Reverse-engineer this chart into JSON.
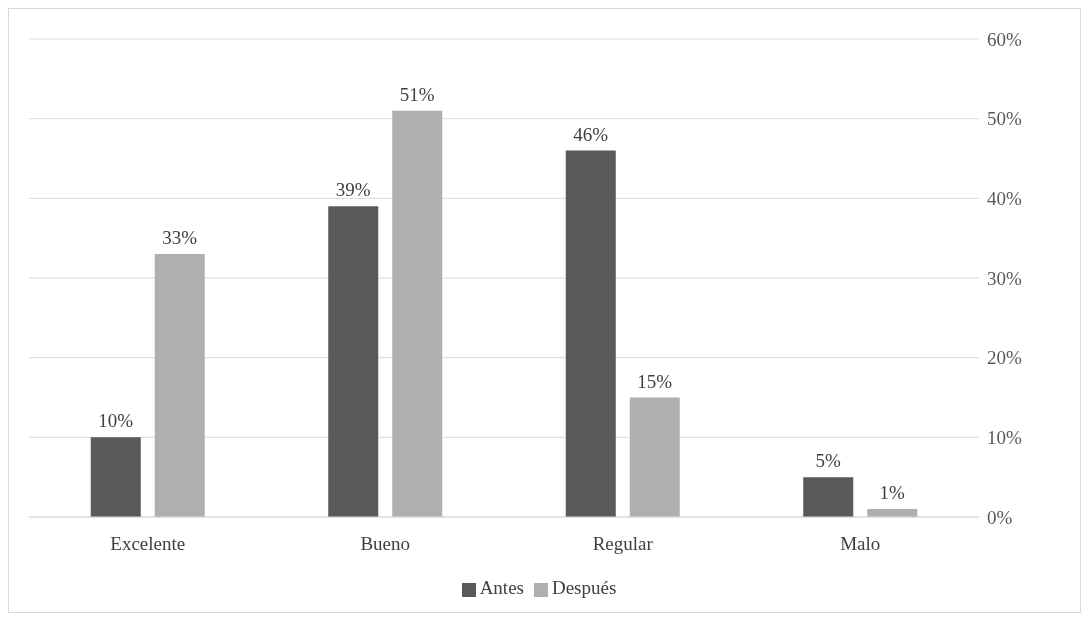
{
  "chart_data": {
    "type": "bar",
    "categories": [
      "Excelente",
      "Bueno",
      "Regular",
      "Malo"
    ],
    "series": [
      {
        "name": "Antes",
        "color": "#595959",
        "values": [
          10,
          39,
          46,
          5
        ],
        "value_labels": [
          "10%",
          "39%",
          "46%",
          "5%"
        ]
      },
      {
        "name": "Después",
        "color": "#afafaf",
        "values": [
          33,
          51,
          15,
          1
        ],
        "value_labels": [
          "33%",
          "51%",
          "15%",
          "1%"
        ]
      }
    ],
    "ylim": [
      0,
      60
    ],
    "yticks": [
      {
        "value": 0,
        "label": "0%"
      },
      {
        "value": 10,
        "label": "10%"
      },
      {
        "value": 20,
        "label": "20%"
      },
      {
        "value": 30,
        "label": "30%"
      },
      {
        "value": 40,
        "label": "40%"
      },
      {
        "value": 50,
        "label": "50%"
      },
      {
        "value": 60,
        "label": "60%"
      }
    ],
    "grid": "y",
    "legend": "bottom"
  }
}
